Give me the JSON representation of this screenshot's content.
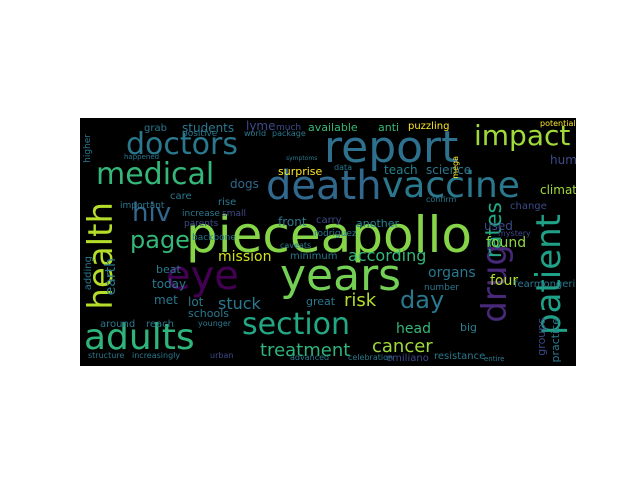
{
  "words": {
    "pieceapollo": "pieceapollo",
    "years": "years",
    "report": "report",
    "death": "death",
    "vaccine": "vaccine",
    "adults": "adults",
    "eye": "eye",
    "medical": "medical",
    "doctors": "doctors",
    "health": "health",
    "section": "section",
    "patient": "patient",
    "drug": "drug",
    "impact": "impact",
    "hiv": "hiv",
    "page": "page",
    "day": "day",
    "rates": "rates",
    "treatment": "treatment",
    "cancer": "cancer",
    "risk": "risk",
    "according": "according",
    "mission": "mission",
    "stuck": "stuck",
    "found": "found",
    "four": "four",
    "head": "head",
    "organs": "organs",
    "earth": "earth",
    "human": "human",
    "climate": "climate",
    "science": "science",
    "teach": "teach",
    "students": "students",
    "lyme": "lyme",
    "available": "available",
    "anti": "anti",
    "puzzling": "puzzling",
    "dogs": "dogs",
    "surprise": "surprise",
    "front": "front",
    "used": "used",
    "change": "change",
    "met": "met",
    "today": "today",
    "lot": "lot",
    "schools": "schools",
    "beat": "beat",
    "great": "great",
    "minimum": "minimum",
    "another": "another",
    "carry": "carry",
    "big": "big",
    "practice": "practice",
    "groups": "groups",
    "fearmongering": "fearmongering",
    "resistance": "resistance",
    "emiliano": "emiliano",
    "around": "around",
    "reach": "reach",
    "grab": "grab",
    "adding": "adding",
    "rise": "rise",
    "care": "care",
    "small": "small",
    "increase": "increase",
    "important": "important",
    "positive": "positive",
    "world": "world",
    "package": "package",
    "parents": "parents",
    "backbone": "backbone",
    "rodriguez": "rodriguez",
    "number": "number",
    "confirm": "confirm",
    "younger": "younger",
    "urban": "urban",
    "structure": "structure",
    "increasingly": "increasingly",
    "higher": "higher",
    "much": "much",
    "data": "data",
    "happened": "happened",
    "mega": "mega",
    "mystery": "mystery",
    "potential": "potential",
    "advanced": "advanced",
    "symptoms": "symptoms",
    "caveats": "caveats",
    "celebration": "celebration",
    "entire": "entire"
  },
  "colors": {
    "background": "#000000",
    "page": "#ffffff"
  }
}
